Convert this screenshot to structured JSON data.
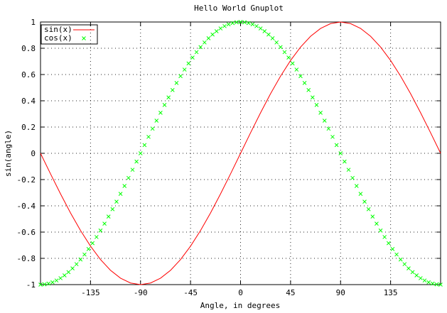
{
  "chart_data": {
    "type": "line",
    "title": "Hello World Gnuplot",
    "xlabel": "Angle, in degrees",
    "ylabel": "sin(angle)",
    "xlim": [
      -180,
      180
    ],
    "ylim": [
      -1,
      1
    ],
    "grid": true,
    "legend_position": "top-left",
    "x_ticks": [
      {
        "value": -135,
        "label": "-135"
      },
      {
        "value": -90,
        "label": "-90"
      },
      {
        "value": -45,
        "label": "-45"
      },
      {
        "value": 0,
        "label": "0"
      },
      {
        "value": 45,
        "label": "45"
      },
      {
        "value": 90,
        "label": "90"
      },
      {
        "value": 135,
        "label": "135"
      }
    ],
    "y_ticks": [
      {
        "value": -1,
        "label": "-1"
      },
      {
        "value": -0.8,
        "label": "-0.8"
      },
      {
        "value": -0.6,
        "label": "-0.6"
      },
      {
        "value": -0.4,
        "label": "-0.4"
      },
      {
        "value": -0.2,
        "label": "-0.2"
      },
      {
        "value": 0,
        "label": "0"
      },
      {
        "value": 0.2,
        "label": "0.2"
      },
      {
        "value": 0.4,
        "label": "0.4"
      },
      {
        "value": 0.6,
        "label": "0.6"
      },
      {
        "value": 0.8,
        "label": "0.8"
      },
      {
        "value": 1,
        "label": "1"
      }
    ],
    "series": [
      {
        "name": "sin(x)",
        "style": "line",
        "color": "#ff0000",
        "x": [
          -180,
          -171,
          -162,
          -153,
          -144,
          -135,
          -126,
          -117,
          -108,
          -99,
          -90,
          -81,
          -72,
          -63,
          -54,
          -45,
          -36,
          -27,
          -18,
          -9,
          0,
          9,
          18,
          27,
          36,
          45,
          54,
          63,
          72,
          81,
          90,
          99,
          108,
          117,
          126,
          135,
          144,
          153,
          162,
          171,
          180
        ],
        "y": [
          0,
          -0.1564,
          -0.309,
          -0.454,
          -0.5878,
          -0.7071,
          -0.809,
          -0.891,
          -0.9511,
          -0.9877,
          -1,
          -0.9877,
          -0.9511,
          -0.891,
          -0.809,
          -0.7071,
          -0.5878,
          -0.454,
          -0.309,
          -0.1564,
          0,
          0.1564,
          0.309,
          0.454,
          0.5878,
          0.7071,
          0.809,
          0.891,
          0.9511,
          0.9877,
          1,
          0.9877,
          0.9511,
          0.891,
          0.809,
          0.7071,
          0.5878,
          0.454,
          0.309,
          0.1564,
          0
        ]
      },
      {
        "name": "cos(x)",
        "style": "points",
        "color": "#00ff00",
        "x": [
          -180,
          -176.4,
          -172.8,
          -169.2,
          -165.6,
          -162,
          -158.4,
          -154.8,
          -151.2,
          -147.6,
          -144,
          -140.4,
          -136.8,
          -133.2,
          -129.6,
          -126,
          -122.4,
          -118.8,
          -115.2,
          -111.6,
          -108,
          -104.4,
          -100.8,
          -97.2,
          -93.6,
          -90,
          -86.4,
          -82.8,
          -79.2,
          -75.6,
          -72,
          -68.4,
          -64.8,
          -61.2,
          -57.6,
          -54,
          -50.4,
          -46.8,
          -43.2,
          -39.6,
          -36,
          -32.4,
          -28.8,
          -25.2,
          -21.6,
          -18,
          -14.4,
          -10.8,
          -7.2,
          -3.6,
          0,
          3.6,
          7.2,
          10.8,
          14.4,
          18,
          21.6,
          25.2,
          28.8,
          32.4,
          36,
          39.6,
          43.2,
          46.8,
          50.4,
          54,
          57.6,
          61.2,
          64.8,
          68.4,
          72,
          75.6,
          79.2,
          82.8,
          86.4,
          90,
          93.6,
          97.2,
          100.8,
          104.4,
          108,
          111.6,
          115.2,
          118.8,
          122.4,
          126,
          129.6,
          133.2,
          136.8,
          140.4,
          144,
          147.6,
          151.2,
          154.8,
          158.4,
          162,
          165.6,
          169.2,
          172.8,
          176.4,
          180
        ],
        "y": [
          -1,
          -0.998,
          -0.9921,
          -0.9823,
          -0.9686,
          -0.9511,
          -0.9298,
          -0.9048,
          -0.8763,
          -0.8443,
          -0.809,
          -0.7705,
          -0.729,
          -0.6845,
          -0.6374,
          -0.5878,
          -0.5358,
          -0.4818,
          -0.4258,
          -0.3681,
          -0.309,
          -0.2487,
          -0.1874,
          -0.1253,
          -0.0628,
          0,
          0.0628,
          0.1253,
          0.1874,
          0.2487,
          0.309,
          0.3681,
          0.4258,
          0.4818,
          0.5358,
          0.5878,
          0.6374,
          0.6845,
          0.729,
          0.7705,
          0.809,
          0.8443,
          0.8763,
          0.9048,
          0.9298,
          0.9511,
          0.9686,
          0.9823,
          0.9921,
          0.998,
          1,
          0.998,
          0.9921,
          0.9823,
          0.9686,
          0.9511,
          0.9298,
          0.9048,
          0.8763,
          0.8443,
          0.809,
          0.7705,
          0.729,
          0.6845,
          0.6374,
          0.5878,
          0.5358,
          0.4818,
          0.4258,
          0.3681,
          0.309,
          0.2487,
          0.1874,
          0.1253,
          0.0628,
          0,
          -0.0628,
          -0.1253,
          -0.1874,
          -0.2487,
          -0.309,
          -0.3681,
          -0.4258,
          -0.4818,
          -0.5358,
          -0.5878,
          -0.6374,
          -0.6845,
          -0.729,
          -0.7705,
          -0.809,
          -0.8443,
          -0.8763,
          -0.9048,
          -0.9298,
          -0.9511,
          -0.9686,
          -0.9823,
          -0.9921,
          -0.998,
          -1
        ]
      }
    ]
  }
}
